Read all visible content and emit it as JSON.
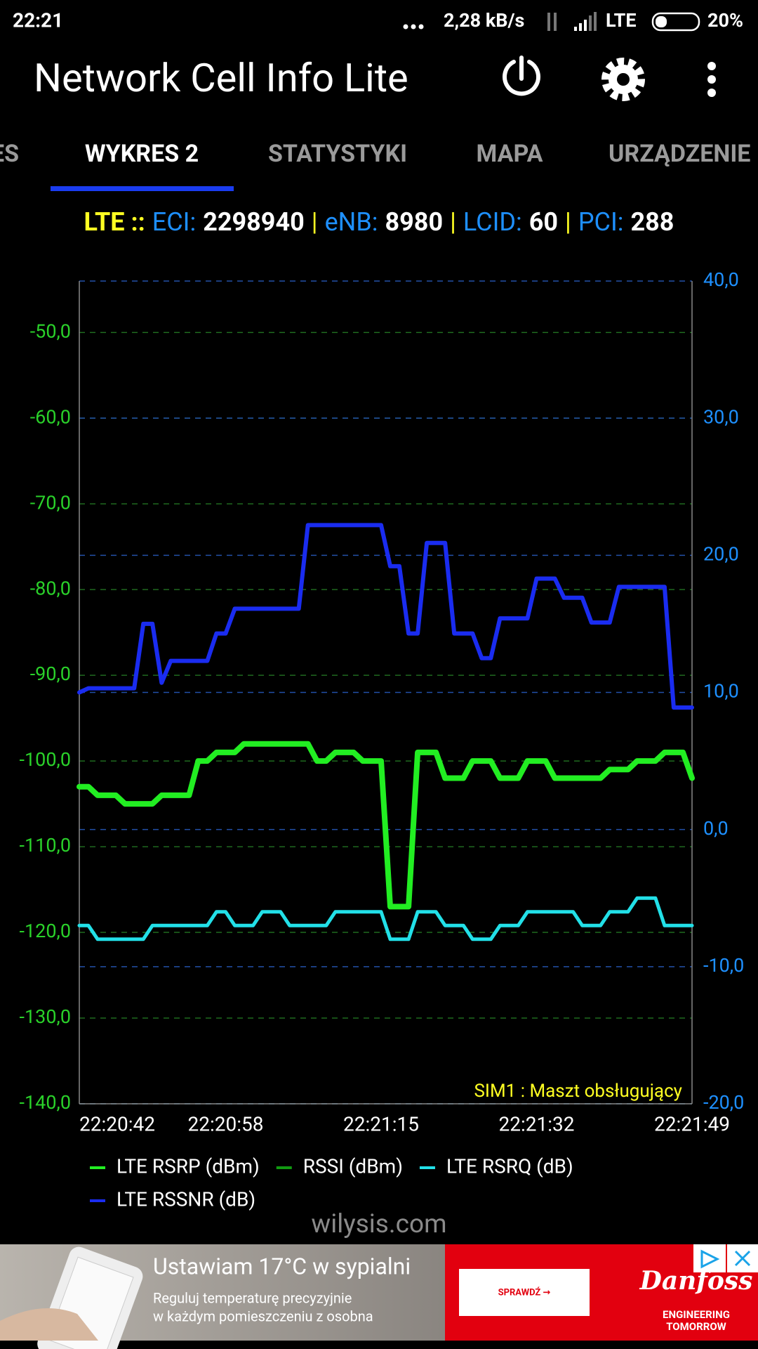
{
  "status_bar": {
    "time": "22:21",
    "speed": "2,28 kB/s",
    "network": "LTE",
    "battery": "20%"
  },
  "app_bar": {
    "title": "Network Cell Info Lite"
  },
  "tabs": [
    "ES",
    "WYKRES 2",
    "STATYSTYKI",
    "MAPA",
    "URZĄDZENIE"
  ],
  "active_tab": 1,
  "cell_info": {
    "technology": "LTE ::",
    "separator": "|",
    "fields": [
      {
        "label": "ECI:",
        "value": 2298940
      },
      {
        "label": "eNB:",
        "value": 8980
      },
      {
        "label": "LCID:",
        "value": 60
      },
      {
        "label": "PCI:",
        "value": 288
      }
    ]
  },
  "chart_data": {
    "type": "line",
    "annotation": "SIM1 : Maszt obsługujący",
    "grid": true,
    "x": [
      "22:20:42",
      "22:20:43",
      "22:20:44",
      "22:20:45",
      "22:20:46",
      "22:20:47",
      "22:20:48",
      "22:20:49",
      "22:20:50",
      "22:20:51",
      "22:20:52",
      "22:20:53",
      "22:20:54",
      "22:20:55",
      "22:20:56",
      "22:20:57",
      "22:20:58",
      "22:20:59",
      "22:21:00",
      "22:21:01",
      "22:21:02",
      "22:21:03",
      "22:21:04",
      "22:21:05",
      "22:21:06",
      "22:21:07",
      "22:21:08",
      "22:21:09",
      "22:21:10",
      "22:21:11",
      "22:21:12",
      "22:21:13",
      "22:21:14",
      "22:21:15",
      "22:21:16",
      "22:21:17",
      "22:21:18",
      "22:21:19",
      "22:21:20",
      "22:21:21",
      "22:21:22",
      "22:21:23",
      "22:21:24",
      "22:21:25",
      "22:21:26",
      "22:21:27",
      "22:21:28",
      "22:21:29",
      "22:21:30",
      "22:21:31",
      "22:21:32",
      "22:21:33",
      "22:21:34",
      "22:21:35",
      "22:21:36",
      "22:21:37",
      "22:21:38",
      "22:21:39",
      "22:21:40",
      "22:21:41",
      "22:21:42",
      "22:21:43",
      "22:21:44",
      "22:21:45",
      "22:21:46",
      "22:21:47",
      "22:21:48",
      "22:21:49"
    ],
    "xticks": [
      "22:20:42",
      "22:20:58",
      "22:21:15",
      "22:21:32",
      "22:21:49"
    ],
    "ylim": [
      -140,
      -44
    ],
    "yticks": [
      {
        "value": -140,
        "label": "-140,0"
      },
      {
        "value": -130,
        "label": "-130,0"
      },
      {
        "value": -120,
        "label": "-120,0"
      },
      {
        "value": -110,
        "label": "-110,0"
      },
      {
        "value": -100,
        "label": "-100,0"
      },
      {
        "value": -90,
        "label": "-90,0"
      },
      {
        "value": -80,
        "label": "-80,0"
      },
      {
        "value": -70,
        "label": "-70,0"
      },
      {
        "value": -60,
        "label": "-60,0"
      },
      {
        "value": -50,
        "label": "-50,0"
      }
    ],
    "y2lim": [
      -20,
      40
    ],
    "y2ticks": [
      {
        "value": -20,
        "label": "-20,0"
      },
      {
        "value": -10,
        "label": "-10,0"
      },
      {
        "value": 0,
        "label": "0,0"
      },
      {
        "value": 10,
        "label": "10,0"
      },
      {
        "value": 20,
        "label": "20,0"
      },
      {
        "value": 30,
        "label": "30,0"
      },
      {
        "value": 40,
        "label": "40,0"
      }
    ],
    "series": [
      {
        "name": "LTE RSRP (dBm)",
        "color": "#22ee22",
        "axis": "y",
        "values": [
          -103,
          -103,
          -104,
          -104,
          -104,
          -105,
          -105,
          -105,
          -105,
          -104,
          -104,
          -104,
          -104,
          -100,
          -100,
          -99,
          -99,
          -99,
          -98,
          -98,
          -98,
          -98,
          -98,
          -98,
          -98,
          -98,
          -100,
          -100,
          -99,
          -99,
          -99,
          -100,
          -100,
          -100,
          -117,
          -117,
          -117,
          -99,
          -99,
          -99,
          -102,
          -102,
          -102,
          -100,
          -100,
          -100,
          -102,
          -102,
          -102,
          -100,
          -100,
          -100,
          -102,
          -102,
          -102,
          -102,
          -102,
          -102,
          -101,
          -101,
          -101,
          -100,
          -100,
          -100,
          -99,
          -99,
          -99,
          -102
        ]
      },
      {
        "name": "RSSI (dBm)",
        "color": "#119911",
        "axis": "y",
        "values": [
          null,
          null,
          null,
          null,
          null,
          null,
          null,
          null,
          null,
          null,
          null,
          null,
          null,
          null,
          null,
          null,
          null,
          null,
          null,
          null,
          null,
          null,
          null,
          null,
          null,
          null,
          null,
          null,
          null,
          null,
          null,
          null,
          null,
          null,
          null,
          null,
          null,
          null,
          null,
          null,
          null,
          null,
          null,
          null,
          null,
          null,
          null,
          null,
          null,
          null,
          null,
          null,
          null,
          null,
          null,
          null,
          null,
          null,
          null,
          null,
          null,
          null,
          null,
          null,
          null,
          null,
          null,
          null
        ]
      },
      {
        "name": "LTE RSRQ (dB)",
        "color": "#22e0e8",
        "axis": "y2",
        "values": [
          -7,
          -7,
          -8,
          -8,
          -8,
          -8,
          -8,
          -8,
          -7,
          -7,
          -7,
          -7,
          -7,
          -7,
          -7,
          -6,
          -6,
          -7,
          -7,
          -7,
          -6,
          -6,
          -6,
          -7,
          -7,
          -7,
          -7,
          -7,
          -6,
          -6,
          -6,
          -6,
          -6,
          -6,
          -8,
          -8,
          -8,
          -6,
          -6,
          -6,
          -7,
          -7,
          -7,
          -8,
          -8,
          -8,
          -7,
          -7,
          -7,
          -6,
          -6,
          -6,
          -6,
          -6,
          -6,
          -7,
          -7,
          -7,
          -6,
          -6,
          -6,
          -5,
          -5,
          -5,
          -7,
          -7,
          -7,
          -7
        ]
      },
      {
        "name": "LTE RSSNR (dB)",
        "color": "#1a2cf0",
        "axis": "y2",
        "values": [
          10,
          10.3,
          10.3,
          10.3,
          10.3,
          10.3,
          10.3,
          15,
          15,
          10.7,
          12.3,
          12.3,
          12.3,
          12.3,
          12.3,
          14.3,
          14.3,
          16.1,
          16.1,
          16.1,
          16.1,
          16.1,
          16.1,
          16.1,
          16.1,
          22.2,
          22.2,
          22.2,
          22.2,
          22.2,
          22.2,
          22.2,
          22.2,
          22.2,
          19.2,
          19.2,
          14.3,
          14.3,
          20.9,
          20.9,
          20.9,
          14.3,
          14.3,
          14.3,
          12.5,
          12.5,
          15.4,
          15.4,
          15.4,
          15.4,
          18.3,
          18.3,
          18.3,
          16.9,
          16.9,
          16.9,
          15.1,
          15.1,
          15.1,
          17.7,
          17.7,
          17.7,
          17.7,
          17.7,
          17.7,
          8.9,
          8.9,
          8.9
        ]
      }
    ]
  },
  "watermark": "wilysis.com",
  "ad": {
    "headline": "Ustawiam 17°C w sypialni",
    "body": [
      "Reguluj temperaturę precyzyjnie",
      "w każdym pomieszczeniu z osobna"
    ],
    "button": "SPRAWDŹ →",
    "brand": "Danfoss",
    "tagline": [
      "ENGINEERING",
      "TOMORROW"
    ]
  }
}
